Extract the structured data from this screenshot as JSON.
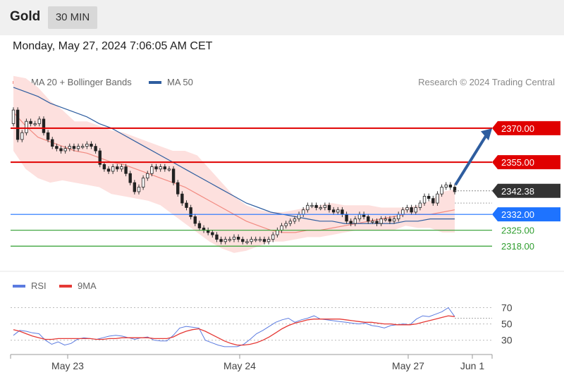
{
  "header": {
    "title": "Gold",
    "timeframe": "30 MIN"
  },
  "timestamp": "Monday, May 27, 2024 7:06:05 AM CET",
  "legend": {
    "ma20": {
      "label": "MA 20 + Bollinger Bands",
      "color": "#f28b82"
    },
    "ma50": {
      "label": "MA 50",
      "color": "#2e5d9f"
    }
  },
  "research_note": "Research © 2024 Trading Central",
  "rsi_legend": {
    "rsi": {
      "label": "RSI",
      "color": "#5b7be0"
    },
    "ma9": {
      "label": "9MA",
      "color": "#e53935"
    }
  },
  "chart_data": [
    {
      "type": "candlestick",
      "title": "Gold 30 MIN",
      "x_ticks": [
        "May 23",
        "May 24",
        "May 27",
        "Jun 1"
      ],
      "ylim": [
        2310,
        2383
      ],
      "levels": [
        {
          "value": 2370.0,
          "label": "2370.00",
          "color": "#e00000",
          "kind": "resistance"
        },
        {
          "value": 2355.0,
          "label": "2355.00",
          "color": "#e00000",
          "kind": "resistance"
        },
        {
          "value": 2342.38,
          "label": "2342.38",
          "color": "#333333",
          "kind": "last-price"
        },
        {
          "value": 2332.0,
          "label": "2332.00",
          "color": "#1e73ff",
          "kind": "pivot"
        },
        {
          "value": 2325.0,
          "label": "2325.00",
          "color": "#2f9e2f",
          "kind": "support"
        },
        {
          "value": 2318.0,
          "label": "2318.00",
          "color": "#2f9e2f",
          "kind": "support"
        }
      ],
      "closes": [
        2378,
        2365,
        2368,
        2373,
        2372,
        2372,
        2374,
        2368,
        2365,
        2362,
        2361,
        2360,
        2361,
        2362,
        2361,
        2362,
        2362,
        2363,
        2362,
        2360,
        2354,
        2352,
        2351,
        2353,
        2352,
        2353,
        2350,
        2346,
        2342,
        2344,
        2348,
        2350,
        2353,
        2352,
        2353,
        2352,
        2352,
        2346,
        2341,
        2337,
        2335,
        2331,
        2328,
        2326,
        2325,
        2324,
        2323,
        2321,
        2320,
        2321,
        2321,
        2322,
        2321,
        2320,
        2320,
        2321,
        2321,
        2321,
        2320,
        2321,
        2323,
        2325,
        2327,
        2328,
        2329,
        2330,
        2332,
        2334,
        2336,
        2336,
        2335,
        2335,
        2336,
        2334,
        2333,
        2334,
        2332,
        2329,
        2328,
        2330,
        2332,
        2331,
        2329,
        2329,
        2328,
        2330,
        2330,
        2329,
        2330,
        2332,
        2334,
        2335,
        2333,
        2335,
        2337,
        2340,
        2339,
        2337,
        2341,
        2344,
        2345,
        2344,
        2342
      ],
      "ma50": [
        2388,
        2386,
        2384,
        2381,
        2379,
        2377,
        2375,
        2372,
        2370,
        2367,
        2364,
        2361,
        2358,
        2355,
        2352,
        2349,
        2346,
        2343,
        2340,
        2337,
        2335,
        2333,
        2332,
        2331,
        2330,
        2329,
        2329,
        2328,
        2328,
        2328,
        2328,
        2328,
        2329,
        2329,
        2330,
        2330,
        2330
      ],
      "ma20": [
        2377,
        2371,
        2366,
        2364,
        2362,
        2360,
        2359,
        2357,
        2355,
        2354,
        2352,
        2350,
        2348,
        2346,
        2344,
        2341,
        2338,
        2335,
        2332,
        2329,
        2327,
        2325,
        2324,
        2324,
        2325,
        2325,
        2326,
        2327,
        2328,
        2329,
        2330,
        2331,
        2332,
        2332,
        2332,
        2333,
        2334
      ],
      "band_upper": [
        2393,
        2392,
        2388,
        2382,
        2378,
        2373,
        2373,
        2371,
        2369,
        2368,
        2366,
        2364,
        2362,
        2360,
        2360,
        2358,
        2352,
        2346,
        2340,
        2336,
        2334,
        2333,
        2333,
        2334,
        2335,
        2336,
        2337,
        2336,
        2336,
        2336,
        2335,
        2335,
        2335,
        2336,
        2338,
        2342,
        2343
      ],
      "band_lower": [
        2360,
        2352,
        2348,
        2346,
        2347,
        2346,
        2345,
        2344,
        2341,
        2340,
        2339,
        2338,
        2336,
        2332,
        2328,
        2324,
        2320,
        2317,
        2315,
        2316,
        2318,
        2320,
        2320,
        2321,
        2322,
        2322,
        2323,
        2324,
        2325,
        2325,
        2325,
        2325,
        2327,
        2326,
        2326,
        2324,
        2324
      ]
    },
    {
      "type": "line",
      "title": "RSI",
      "y_ticks": [
        30,
        50,
        70
      ],
      "ylim": [
        15,
        80
      ],
      "series": [
        {
          "name": "RSI",
          "values": [
            36,
            42,
            41,
            39,
            38,
            30,
            25,
            28,
            24,
            26,
            31,
            33,
            32,
            31,
            33,
            35,
            36,
            35,
            33,
            31,
            33,
            34,
            30,
            29,
            29,
            36,
            45,
            47,
            46,
            45,
            30,
            27,
            24,
            22,
            22,
            22,
            25,
            31,
            38,
            42,
            47,
            52,
            55,
            57,
            52,
            55,
            57,
            60,
            56,
            55,
            54,
            53,
            52,
            51,
            50,
            51,
            48,
            47,
            45,
            48,
            49,
            50,
            49,
            56,
            60,
            59,
            62,
            65,
            70,
            59
          ]
        },
        {
          "name": "9MA",
          "values": [
            43,
            41,
            38,
            35,
            33,
            31,
            31,
            32,
            32,
            32,
            32,
            32,
            32,
            31,
            31,
            32,
            32,
            33,
            33,
            33,
            33,
            33,
            32,
            32,
            32,
            34,
            38,
            41,
            43,
            44,
            41,
            37,
            33,
            29,
            26,
            24,
            24,
            25,
            27,
            30,
            34,
            39,
            44,
            48,
            51,
            53,
            55,
            56,
            56,
            56,
            56,
            56,
            55,
            54,
            53,
            52,
            52,
            51,
            50,
            50,
            49,
            49,
            49,
            50,
            52,
            54,
            56,
            58,
            60,
            59
          ]
        }
      ],
      "x_ticks": [
        "May 23",
        "May 24",
        "May 27",
        "Jun 1"
      ]
    }
  ]
}
